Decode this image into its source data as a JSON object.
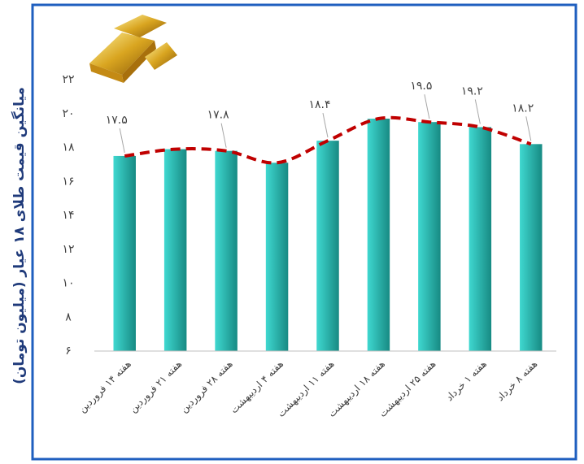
{
  "chart_data": {
    "type": "bar",
    "y_label": "میانگین قیمت طلای ۱۸ عیار (میلیون تومان)",
    "categories": [
      "هفته ۱۴ فروردین",
      "هفته ۲۱ فروردین",
      "هفته ۲۸ فروردین",
      "هفته ۴ اردیبهشت",
      "هفته ۱۱ اردیبهشت",
      "هفته ۱۸ اردیبهشت",
      "هفته ۲۵ اردیبهشت",
      "هفته ۱ خرداد",
      "هفته ۸ خرداد"
    ],
    "values": [
      17.5,
      17.9,
      17.8,
      17.1,
      18.4,
      19.7,
      19.5,
      19.2,
      18.2
    ],
    "value_labels": [
      "۱۷.۵",
      null,
      "۱۷.۸",
      null,
      "۱۸.۴",
      null,
      "۱۹.۵",
      "۱۹.۲",
      "۱۸.۲"
    ],
    "color": "#26b5ad",
    "trend_color": "#c00000",
    "ylim": [
      6,
      22
    ],
    "yticks": [
      {
        "value": 6,
        "label": "۶"
      },
      {
        "value": 8,
        "label": "۸"
      },
      {
        "value": 10,
        "label": "۱۰"
      },
      {
        "value": 12,
        "label": "۱۲"
      },
      {
        "value": 14,
        "label": "۱۴"
      },
      {
        "value": 16,
        "label": "۱۶"
      },
      {
        "value": 18,
        "label": "۱۸"
      },
      {
        "value": 20,
        "label": "۲۰"
      },
      {
        "value": 22,
        "label": "۲۲"
      }
    ],
    "grid": false
  }
}
